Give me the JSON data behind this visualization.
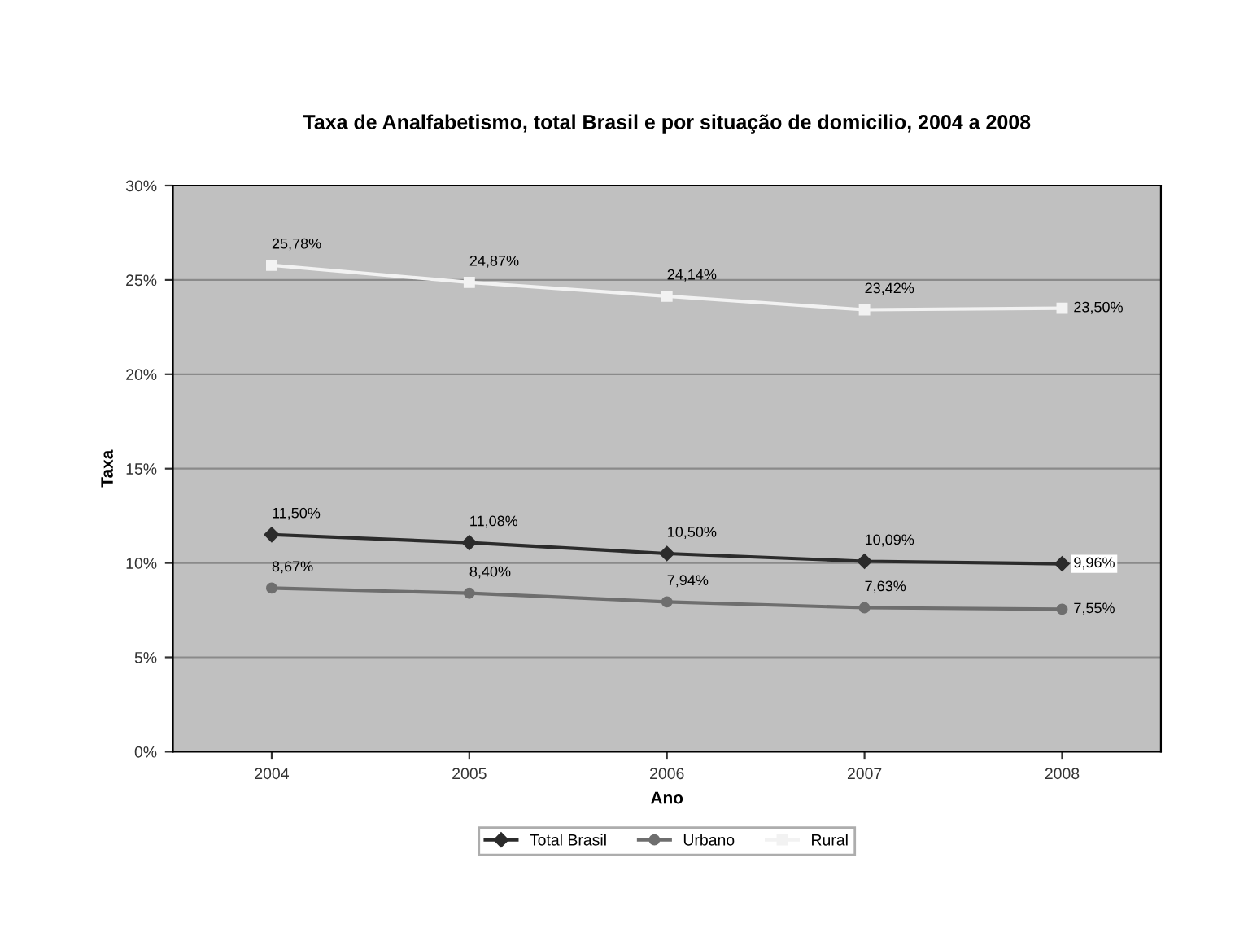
{
  "chart_data": {
    "type": "line",
    "title": "Taxa de Analfabetismo, total Brasil e por situação de domicilio, 2004 a 2008",
    "xlabel": "Ano",
    "ylabel": "Taxa",
    "categories": [
      "2004",
      "2005",
      "2006",
      "2007",
      "2008"
    ],
    "series": [
      {
        "name": "Total Brasil",
        "color": "#2b2b2b",
        "marker": "diamond",
        "values": [
          11.5,
          11.08,
          10.5,
          10.09,
          9.96
        ],
        "value_labels": [
          "11,50%",
          "11,08%",
          "10,50%",
          "10,09%",
          "9,96%"
        ]
      },
      {
        "name": "Urbano",
        "color": "#6e6e6e",
        "marker": "circle",
        "values": [
          8.67,
          8.4,
          7.94,
          7.63,
          7.55
        ],
        "value_labels": [
          "8,67%",
          "8,40%",
          "7,94%",
          "7,63%",
          "7,55%"
        ]
      },
      {
        "name": "Rural",
        "color": "#f2f2f2",
        "marker": "square",
        "values": [
          25.78,
          24.87,
          24.14,
          23.42,
          23.5
        ],
        "value_labels": [
          "25,78%",
          "24,87%",
          "24,14%",
          "23,42%",
          "23,50%"
        ]
      }
    ],
    "ylim": [
      0,
      30
    ],
    "yticks": [
      {
        "value": 0,
        "label": "0%"
      },
      {
        "value": 5,
        "label": "5%"
      },
      {
        "value": 10,
        "label": "10%"
      },
      {
        "value": 15,
        "label": "15%"
      },
      {
        "value": 20,
        "label": "20%"
      },
      {
        "value": 25,
        "label": "25%"
      },
      {
        "value": 30,
        "label": "30%"
      }
    ],
    "grid": "y",
    "legend": "bottom"
  }
}
